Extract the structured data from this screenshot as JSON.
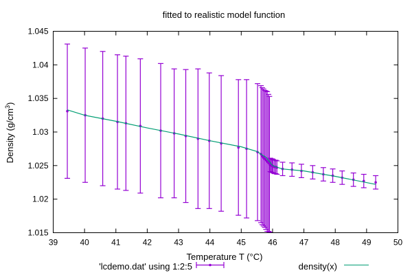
{
  "chart_data": {
    "type": "scatter",
    "title": "fitted to realistic model function",
    "xlabel": "Temperature T (°C)",
    "ylabel_main": "Density (g/cm",
    "ylabel_sup": "3",
    "ylabel_close": ")",
    "xlim": [
      39,
      50
    ],
    "ylim": [
      1.015,
      1.045
    ],
    "xticks": [
      39,
      40,
      41,
      42,
      43,
      44,
      45,
      46,
      47,
      48,
      49,
      50
    ],
    "yticks": [
      1.015,
      1.02,
      1.025,
      1.03,
      1.035,
      1.04,
      1.045
    ],
    "ytick_labels": [
      "1.015",
      "1.02",
      "1.025",
      "1.03",
      "1.035",
      "1.04",
      "1.045"
    ],
    "grid": false,
    "legend_position": "bottom",
    "colors": {
      "data": "#9400d3",
      "fit": "#009e73"
    },
    "series": [
      {
        "name": "'lcdemo.dat' using 1:2:5",
        "style": "yerrorbars",
        "x": [
          39.45,
          40.02,
          40.58,
          41.05,
          41.32,
          41.78,
          42.43,
          42.86,
          43.23,
          43.62,
          43.98,
          44.36,
          44.91,
          45.17,
          45.52,
          45.63,
          45.67,
          45.71,
          45.75,
          45.79,
          45.83,
          45.87,
          45.9,
          45.93,
          45.96,
          45.99,
          46.02,
          46.06,
          46.1,
          46.14,
          46.32,
          46.62,
          46.92,
          47.28,
          47.62,
          47.92,
          48.22,
          48.58,
          48.91,
          49.29
        ],
        "y": [
          1.0331,
          1.0325,
          1.032,
          1.0315,
          1.0313,
          1.0309,
          1.0302,
          1.0298,
          1.0294,
          1.029,
          1.0287,
          1.0283,
          1.0277,
          1.0275,
          1.027,
          1.0267,
          1.0264,
          1.0262,
          1.026,
          1.0258,
          1.0256,
          1.0254,
          1.0252,
          1.0251,
          1.025,
          1.025,
          1.0249,
          1.0248,
          1.0248,
          1.0247,
          1.0245,
          1.0244,
          1.0242,
          1.024,
          1.0237,
          1.0235,
          1.0232,
          1.0229,
          1.0227,
          1.0225
        ],
        "yerr": [
          0.01,
          0.01,
          0.01,
          0.01,
          0.01,
          0.01,
          0.01,
          0.0096,
          0.0099,
          0.0104,
          0.0101,
          0.0101,
          0.0101,
          0.0103,
          0.0102,
          0.0102,
          0.0102,
          0.0102,
          0.0102,
          0.0103,
          0.0104,
          0.0102,
          0.0101,
          0.001,
          0.001,
          0.001,
          0.001,
          0.001,
          0.001,
          0.001,
          0.001,
          0.001,
          0.001,
          0.001,
          0.001,
          0.001,
          0.001,
          0.001,
          0.001,
          0.001
        ]
      },
      {
        "name": "density(x)",
        "style": "line",
        "x": [
          39.45,
          40.0,
          41.0,
          42.0,
          43.0,
          44.0,
          45.0,
          45.5,
          45.8,
          46.0,
          46.3,
          47.0,
          48.0,
          49.29
        ],
        "y": [
          1.0333,
          1.0325,
          1.0316,
          1.0306,
          1.0297,
          1.0287,
          1.0278,
          1.0271,
          1.0262,
          1.025,
          1.0245,
          1.0242,
          1.0234,
          1.0222
        ]
      }
    ]
  }
}
